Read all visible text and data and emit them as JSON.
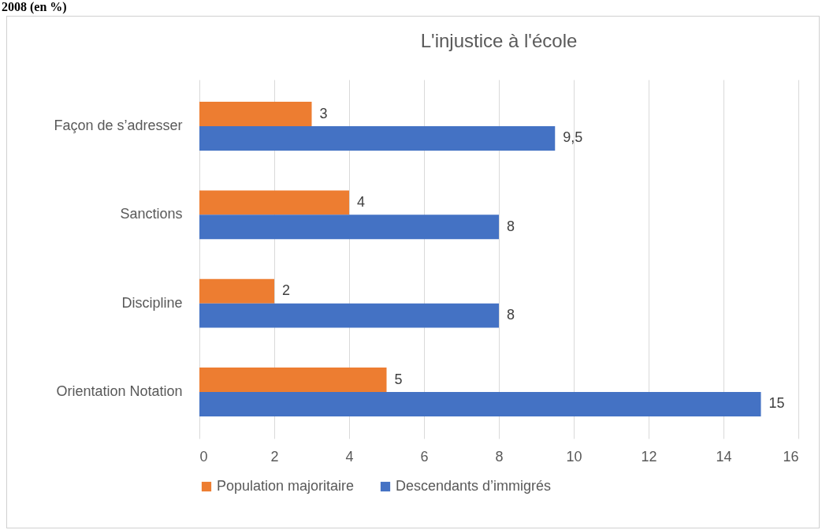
{
  "chart_data": {
    "type": "bar",
    "orientation": "horizontal",
    "title": "L'injustice à l'école",
    "annotations": [
      "2008 (en %)"
    ],
    "categories": [
      "Façon de s’adresser",
      "Sanctions",
      "Discipline",
      "Orientation Notation"
    ],
    "series": [
      {
        "name": "Population majoritaire",
        "color": "#ed7d31",
        "values": [
          3,
          4,
          2,
          5
        ],
        "value_labels": [
          "3",
          "4",
          "2",
          "5"
        ]
      },
      {
        "name": "Descendants d’immigrés",
        "color": "#4472c4",
        "values": [
          9.5,
          8,
          8,
          15
        ],
        "value_labels": [
          "9,5",
          "8",
          "8",
          "15"
        ]
      }
    ],
    "xlim": [
      0,
      16
    ],
    "xticks": [
      0,
      2,
      4,
      6,
      8,
      10,
      12,
      14,
      16
    ],
    "grid": "x",
    "legend": "bottom"
  }
}
